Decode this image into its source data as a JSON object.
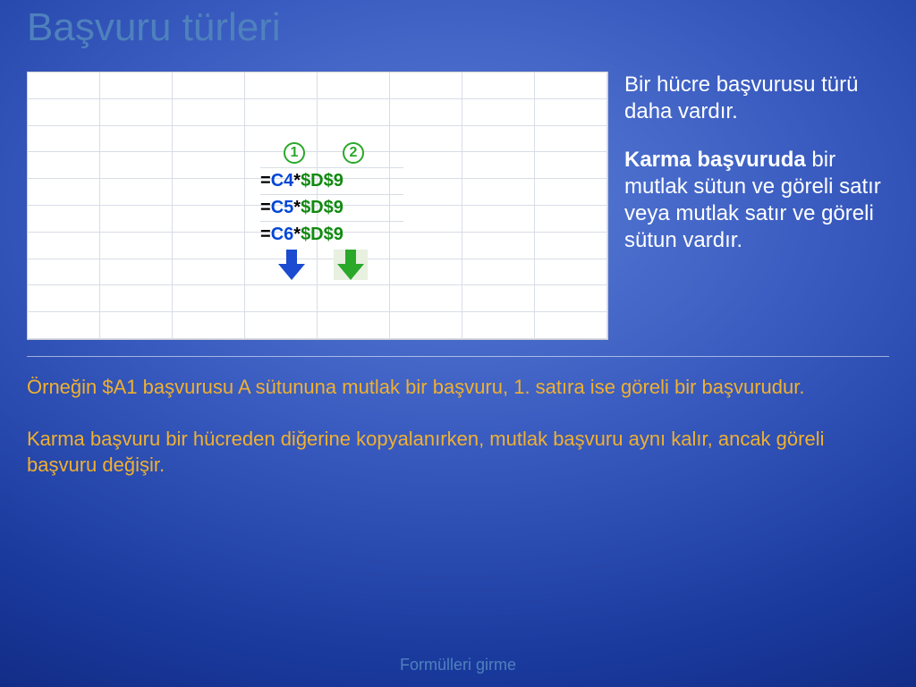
{
  "title": "Başvuru türleri",
  "excel": {
    "grid": {
      "cols": 8,
      "rows": 10,
      "cell_border_color": "#d8dde6",
      "background": "#ffffff"
    },
    "callouts": [
      "1",
      "2"
    ],
    "callout_color": "#2aa82a",
    "formulas": [
      {
        "eq": "=",
        "rel": "C4",
        "star": "*",
        "abs": "$D$9"
      },
      {
        "eq": "=",
        "rel": "C5",
        "star": "*",
        "abs": "$D$9"
      },
      {
        "eq": "=",
        "rel": "C6",
        "star": "*",
        "abs": "$D$9"
      }
    ],
    "formula_colors": {
      "eq": "#000000",
      "rel": "#0046d5",
      "star": "#000000",
      "abs": "#108a10"
    },
    "arrow_colors": {
      "blue": "#1a4bd0",
      "green": "#2aa82a",
      "green_bg": "#e8f0e0"
    },
    "formula_fontsize": 20
  },
  "side": {
    "p1": "Bir hücre başvurusu türü daha vardır.",
    "p2_bold": "Karma başvuruda",
    "p2_rest": " bir mutlak sütun ve göreli satır veya mutlak satır ve göreli sütun vardır.",
    "color": "#ffffff",
    "fontsize": 24
  },
  "bottom": {
    "p1": "Örneğin $A1 başvurusu A sütununa mutlak bir başvuru, 1. satıra ise göreli bir başvurudur.",
    "p2": "Karma başvuru bir hücreden diğerine kopyalanırken, mutlak başvuru aynı kalır, ancak göreli başvuru değişir.",
    "color": "#f0b030",
    "fontsize": 22
  },
  "footer": "Formülleri girme",
  "footer_color": "#4f81bd",
  "title_color": "#4f81bd",
  "title_fontsize": 44,
  "background_gradient": {
    "stops": [
      "#5a7ed8",
      "#3a5cc0",
      "#1a3a9e",
      "#0a1d6a",
      "#031048"
    ]
  }
}
